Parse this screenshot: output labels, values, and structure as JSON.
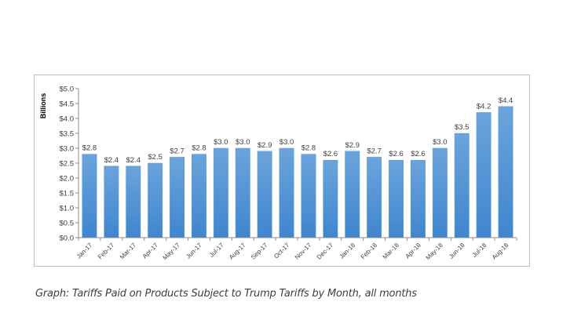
{
  "caption": "Graph: Tariffs Paid on Products Subject to Trump Tariffs by Month, all months",
  "chart_data": {
    "type": "bar",
    "title": "",
    "xlabel": "",
    "ylabel": "Billions",
    "ylim": [
      0,
      5
    ],
    "ytick_step": 0.5,
    "ytick_labels": [
      "$0.0",
      "$0.5",
      "$1.0",
      "$1.5",
      "$2.0",
      "$2.5",
      "$3.0",
      "$3.5",
      "$4.0",
      "$4.5",
      "$5.0"
    ],
    "grid": false,
    "legend": "none",
    "bar_color": "#4a90d6",
    "categories": [
      "Jan-17",
      "Feb-17",
      "Mar-17",
      "Apr-17",
      "May-17",
      "Jun-17",
      "Jul-17",
      "Aug-17",
      "Sep-17",
      "Oct-17",
      "Nov-17",
      "Dec-17",
      "Jan-18",
      "Feb-18",
      "Mar-18",
      "Apr-18",
      "May-18",
      "Jun-18",
      "Jul-18",
      "Aug-18"
    ],
    "values": [
      2.8,
      2.4,
      2.4,
      2.5,
      2.7,
      2.8,
      3.0,
      3.0,
      2.9,
      3.0,
      2.8,
      2.6,
      2.9,
      2.7,
      2.6,
      2.6,
      3.0,
      3.5,
      4.2,
      4.4
    ],
    "data_labels": [
      "$2.8",
      "$2.4",
      "$2.4",
      "$2.5",
      "$2.7",
      "$2.8",
      "$3.0",
      "$3.0",
      "$2.9",
      "$3.0",
      "$2.8",
      "$2.6",
      "$2.9",
      "$2.7",
      "$2.6",
      "$2.6",
      "$3.0",
      "$3.5",
      "$4.2",
      "$4.4"
    ]
  }
}
